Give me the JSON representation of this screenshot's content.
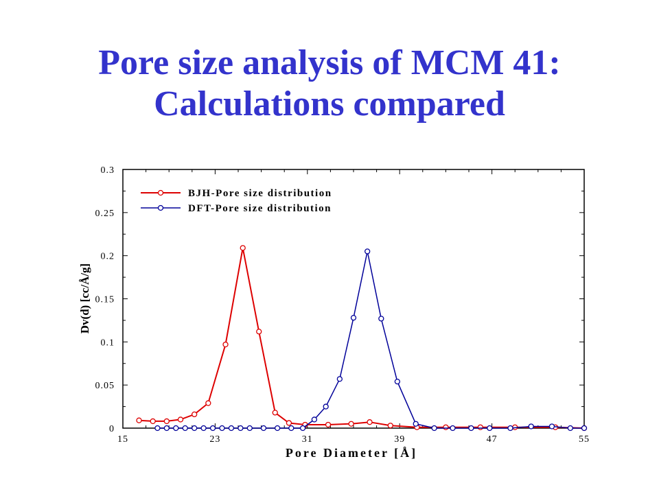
{
  "slide": {
    "title_line1": "Pore size analysis of MCM 41:",
    "title_line2": "Calculations compared"
  },
  "chart_data": {
    "type": "line",
    "title": "",
    "xlabel": "Pore Diameter [Å]",
    "ylabel": "Dv(d) [cc/Å/g]",
    "xlim": [
      15,
      55
    ],
    "ylim": [
      0,
      0.3
    ],
    "xticks": [
      15,
      23,
      31,
      39,
      47,
      55
    ],
    "yticks": [
      0,
      0.05,
      0.1,
      0.15,
      0.2,
      0.25,
      0.3
    ],
    "xtick_labels": [
      "15",
      "23",
      "31",
      "39",
      "47",
      "55"
    ],
    "ytick_labels": [
      "0",
      "0.05",
      "0.1",
      "0.15",
      "0.2",
      "0.25",
      "0.3"
    ],
    "legend_position": "top-left",
    "grid": false,
    "series": [
      {
        "name": "BJH-Pore size distribution",
        "color": "#dd0000",
        "x": [
          16.4,
          17.6,
          18.8,
          20.0,
          21.2,
          22.4,
          23.9,
          25.4,
          26.8,
          28.2,
          29.4,
          30.8,
          32.8,
          34.8,
          36.4,
          38.2,
          40.5,
          43.0,
          46.0,
          49.0,
          52.5,
          55.0
        ],
        "y": [
          0.009,
          0.008,
          0.008,
          0.01,
          0.016,
          0.029,
          0.097,
          0.209,
          0.112,
          0.018,
          0.006,
          0.004,
          0.004,
          0.005,
          0.007,
          0.003,
          0.001,
          0.001,
          0.001,
          0.001,
          0.001,
          0.0
        ]
      },
      {
        "name": "DFT-Pore size distribution",
        "color": "#000099",
        "x": [
          18.0,
          18.8,
          19.6,
          20.4,
          21.2,
          22.0,
          22.8,
          23.6,
          24.4,
          25.2,
          26.0,
          27.2,
          28.4,
          29.6,
          30.6,
          31.6,
          32.6,
          33.8,
          35.0,
          36.2,
          37.4,
          38.8,
          40.4,
          42.0,
          43.6,
          45.2,
          46.8,
          48.6,
          50.4,
          52.2,
          53.8,
          55.0
        ],
        "y": [
          0,
          0,
          0,
          0,
          0,
          0,
          0,
          0,
          0,
          0,
          0,
          0,
          0,
          0,
          0,
          0.01,
          0.025,
          0.057,
          0.128,
          0.205,
          0.127,
          0.054,
          0.005,
          0.0,
          0.0,
          0.0,
          0.0,
          0.0,
          0.002,
          0.002,
          0.0,
          0.0
        ]
      }
    ]
  }
}
